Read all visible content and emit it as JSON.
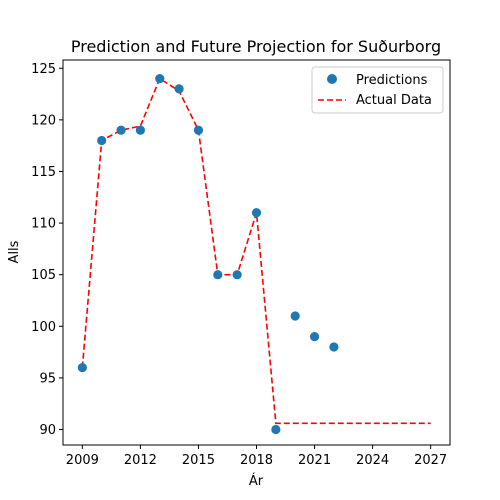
{
  "chart_data": {
    "type": "scatter",
    "title": "Prediction and Future Projection for Suðurborg",
    "xlabel": "Ár",
    "ylabel": "Alls",
    "xlim": [
      2008.0,
      2028.0
    ],
    "ylim": [
      88.5,
      125.8
    ],
    "xticks": [
      2009,
      2012,
      2015,
      2018,
      2021,
      2024,
      2027
    ],
    "yticks": [
      90,
      95,
      100,
      105,
      110,
      115,
      120,
      125
    ],
    "legend_position": "top-right",
    "grid": false,
    "series": [
      {
        "name": "Predictions",
        "kind": "scatter",
        "color": "#1f77b4",
        "x": [
          2009,
          2010,
          2011,
          2012,
          2013,
          2014,
          2015,
          2016,
          2017,
          2018,
          2019,
          2020,
          2021,
          2022
        ],
        "y": [
          96,
          118,
          119,
          119,
          124,
          123,
          119,
          105,
          105,
          111,
          90,
          101,
          99,
          98
        ]
      },
      {
        "name": "Actual Data",
        "kind": "line",
        "style": "dashed",
        "color": "#ff0000",
        "x": [
          2009,
          2010,
          2011,
          2012,
          2013,
          2014,
          2015,
          2016,
          2017,
          2018,
          2019,
          2020,
          2021,
          2022,
          2023,
          2024,
          2025,
          2026,
          2027
        ],
        "y": [
          96,
          118,
          119,
          119.4,
          124,
          122.8,
          119,
          105,
          105,
          111,
          90.6,
          90.6,
          90.6,
          90.6,
          90.6,
          90.6,
          90.6,
          90.6,
          90.6
        ]
      }
    ]
  }
}
